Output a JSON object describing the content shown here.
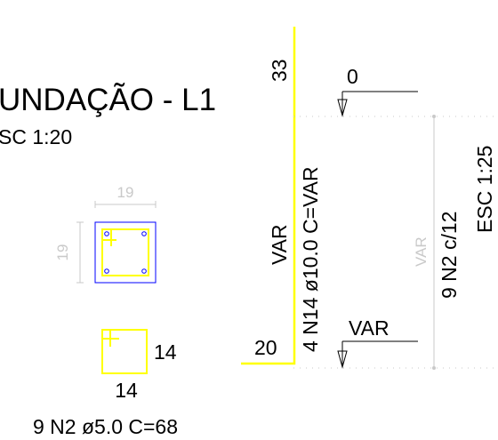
{
  "drawing": {
    "title": "UNDAÇÃO - L1",
    "scale_left": "SC 1:20",
    "scale_right": "ESC 1:25"
  },
  "section": {
    "dim_top": "19",
    "dim_side": "19"
  },
  "stirrup_detail": {
    "width": "14",
    "height": "14",
    "spec": "9 N2 ø5.0  C=68"
  },
  "column_elevation": {
    "top_length": "33",
    "bottom_length": "20",
    "var_label": "VAR",
    "rebar_spec": "4 N14 ø10.0  C=VAR"
  },
  "levels": {
    "top_level": "0",
    "bottom_level": "VAR"
  },
  "stirrup_spacing": {
    "var_label": "VAR",
    "spec": "9 N2 c/12"
  },
  "colors": {
    "rebar": "#ffff00",
    "section_outline": "#0000ff",
    "dimension": "#c9c9c9",
    "line": "#000000"
  }
}
